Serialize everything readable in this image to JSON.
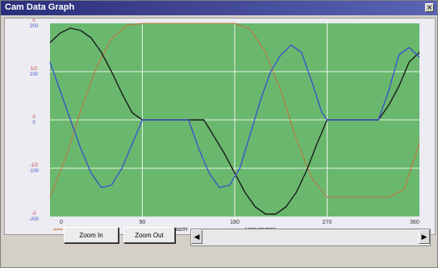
{
  "window": {
    "title": "Cam Data Graph",
    "close_glyph": "×"
  },
  "toolbar": {
    "zoom_in_label": "Zoom In",
    "zoom_out_label": "Zoom Out",
    "scroll_left_glyph": "◀",
    "scroll_right_glyph": "▶"
  },
  "chart_data": {
    "type": "line",
    "x_ticks": [
      "0",
      "90",
      "180",
      "270",
      "360"
    ],
    "xlim": [
      0,
      360
    ],
    "y_ticks": [
      {
        "top": "0",
        "bottom": "200"
      },
      {
        "top": "1/2",
        "bottom": "100"
      },
      {
        "top": "0",
        "bottom": "0"
      },
      {
        "top": "-1/2",
        "bottom": "-100"
      },
      {
        "top": "-0",
        "bottom": "-200"
      }
    ],
    "grid": true,
    "background": "#6ab86e",
    "legend": [
      {
        "name": "POSITION",
        "color": "#c8703a"
      },
      {
        "name": "VELOCITY",
        "color": "#1a1a1a"
      },
      {
        "name": "ACCELERATION",
        "color": "#3c56c8"
      }
    ],
    "series": [
      {
        "name": "POSITION",
        "color": "#c8703a",
        "x": [
          0,
          15,
          30,
          45,
          60,
          75,
          90,
          105,
          120,
          135,
          150,
          165,
          180,
          195,
          210,
          225,
          240,
          255,
          270,
          285,
          300,
          315,
          330,
          345,
          360
        ],
        "y": [
          0.1,
          0.3,
          0.55,
          0.77,
          0.92,
          0.99,
          1.0,
          1.0,
          1.0,
          1.0,
          1.0,
          1.0,
          1.0,
          0.97,
          0.85,
          0.65,
          0.4,
          0.2,
          0.1,
          0.1,
          0.1,
          0.1,
          0.1,
          0.14,
          0.38
        ]
      },
      {
        "name": "VELOCITY",
        "color": "#1a1a1a",
        "x": [
          0,
          10,
          20,
          30,
          40,
          50,
          60,
          70,
          80,
          90,
          100,
          120,
          135,
          150,
          160,
          170,
          180,
          190,
          200,
          210,
          220,
          230,
          240,
          250,
          260,
          270,
          280,
          300,
          320,
          330,
          340,
          350,
          360
        ],
        "y": [
          160,
          180,
          190,
          185,
          170,
          140,
          100,
          55,
          15,
          0,
          0,
          0,
          0,
          0,
          -35,
          -70,
          -110,
          -150,
          -180,
          -195,
          -195,
          -180,
          -150,
          -105,
          -50,
          0,
          0,
          0,
          0,
          30,
          70,
          120,
          140
        ]
      },
      {
        "name": "ACCELERATION",
        "color": "#3c56c8",
        "x": [
          0,
          10,
          20,
          30,
          40,
          50,
          60,
          70,
          80,
          90,
          100,
          120,
          135,
          145,
          155,
          165,
          175,
          185,
          195,
          205,
          215,
          225,
          235,
          245,
          255,
          265,
          270,
          280,
          300,
          320,
          330,
          340,
          350,
          360
        ],
        "y": [
          120,
          60,
          0,
          -60,
          -110,
          -140,
          -135,
          -100,
          -50,
          0,
          0,
          0,
          0,
          -60,
          -110,
          -140,
          -135,
          -100,
          -30,
          40,
          100,
          135,
          155,
          140,
          80,
          15,
          0,
          0,
          0,
          0,
          60,
          135,
          150,
          130
        ]
      }
    ]
  }
}
